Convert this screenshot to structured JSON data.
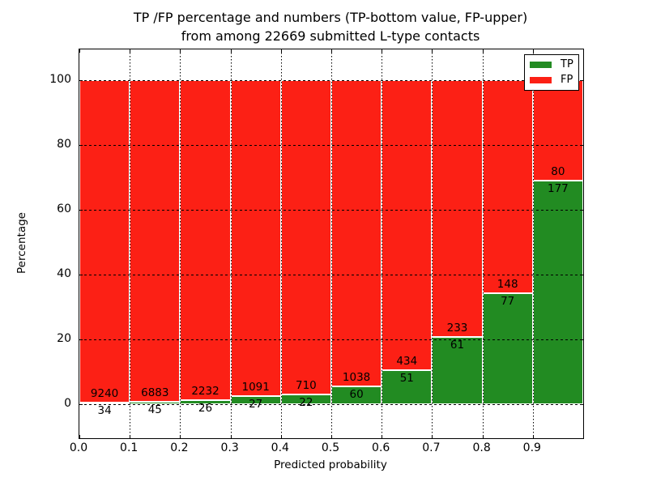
{
  "figure": {
    "title_line1": "TP /FP percentage and numbers (TP-bottom value, FP-upper)",
    "title_line2": "from among 22669 submitted L-type contacts",
    "xlabel": "Predicted probability",
    "ylabel": "Percentage"
  },
  "chart_data": {
    "type": "bar",
    "stacked": true,
    "normalized": "each bin scaled to 100%",
    "title": "TP /FP percentage and numbers (TP-bottom value, FP-upper) from among 22669 submitted L-type contacts",
    "total_contacts": 22669,
    "xlabel": "Predicted probability",
    "ylabel": "Percentage",
    "categories": [
      "0.0-0.1",
      "0.1-0.2",
      "0.2-0.3",
      "0.3-0.4",
      "0.4-0.5",
      "0.5-0.6",
      "0.6-0.7",
      "0.7-0.8",
      "0.8-0.9",
      "0.9-1.0"
    ],
    "bin_width": 0.1,
    "x_tick_values": [
      0.0,
      0.1,
      0.2,
      0.3,
      0.4,
      0.5,
      0.6,
      0.7,
      0.8,
      0.9
    ],
    "x_tick_labels": [
      "0.0",
      "0.1",
      "0.2",
      "0.3",
      "0.4",
      "0.5",
      "0.6",
      "0.7",
      "0.8",
      "0.9"
    ],
    "y_ticks": [
      0,
      20,
      40,
      60,
      80,
      100
    ],
    "y_tick_labels": [
      "0",
      "20",
      "40",
      "60",
      "80",
      "100"
    ],
    "xlim": [
      0.0,
      1.0
    ],
    "ylim": [
      -10.6,
      109.4
    ],
    "grid": true,
    "legend_position": "upper right",
    "series": [
      {
        "name": "TP",
        "color": "#228b22",
        "counts": [
          34,
          45,
          26,
          27,
          22,
          60,
          51,
          61,
          77,
          177
        ],
        "percent": [
          0.37,
          0.65,
          1.15,
          2.42,
          3.01,
          5.46,
          10.52,
          20.75,
          34.22,
          68.87
        ]
      },
      {
        "name": "FP",
        "color": "#fc2015",
        "counts": [
          9240,
          6883,
          2232,
          1091,
          710,
          1038,
          434,
          233,
          148,
          80
        ],
        "percent": [
          99.63,
          99.35,
          98.85,
          97.58,
          96.99,
          94.54,
          89.48,
          79.25,
          65.78,
          31.13
        ]
      }
    ]
  }
}
